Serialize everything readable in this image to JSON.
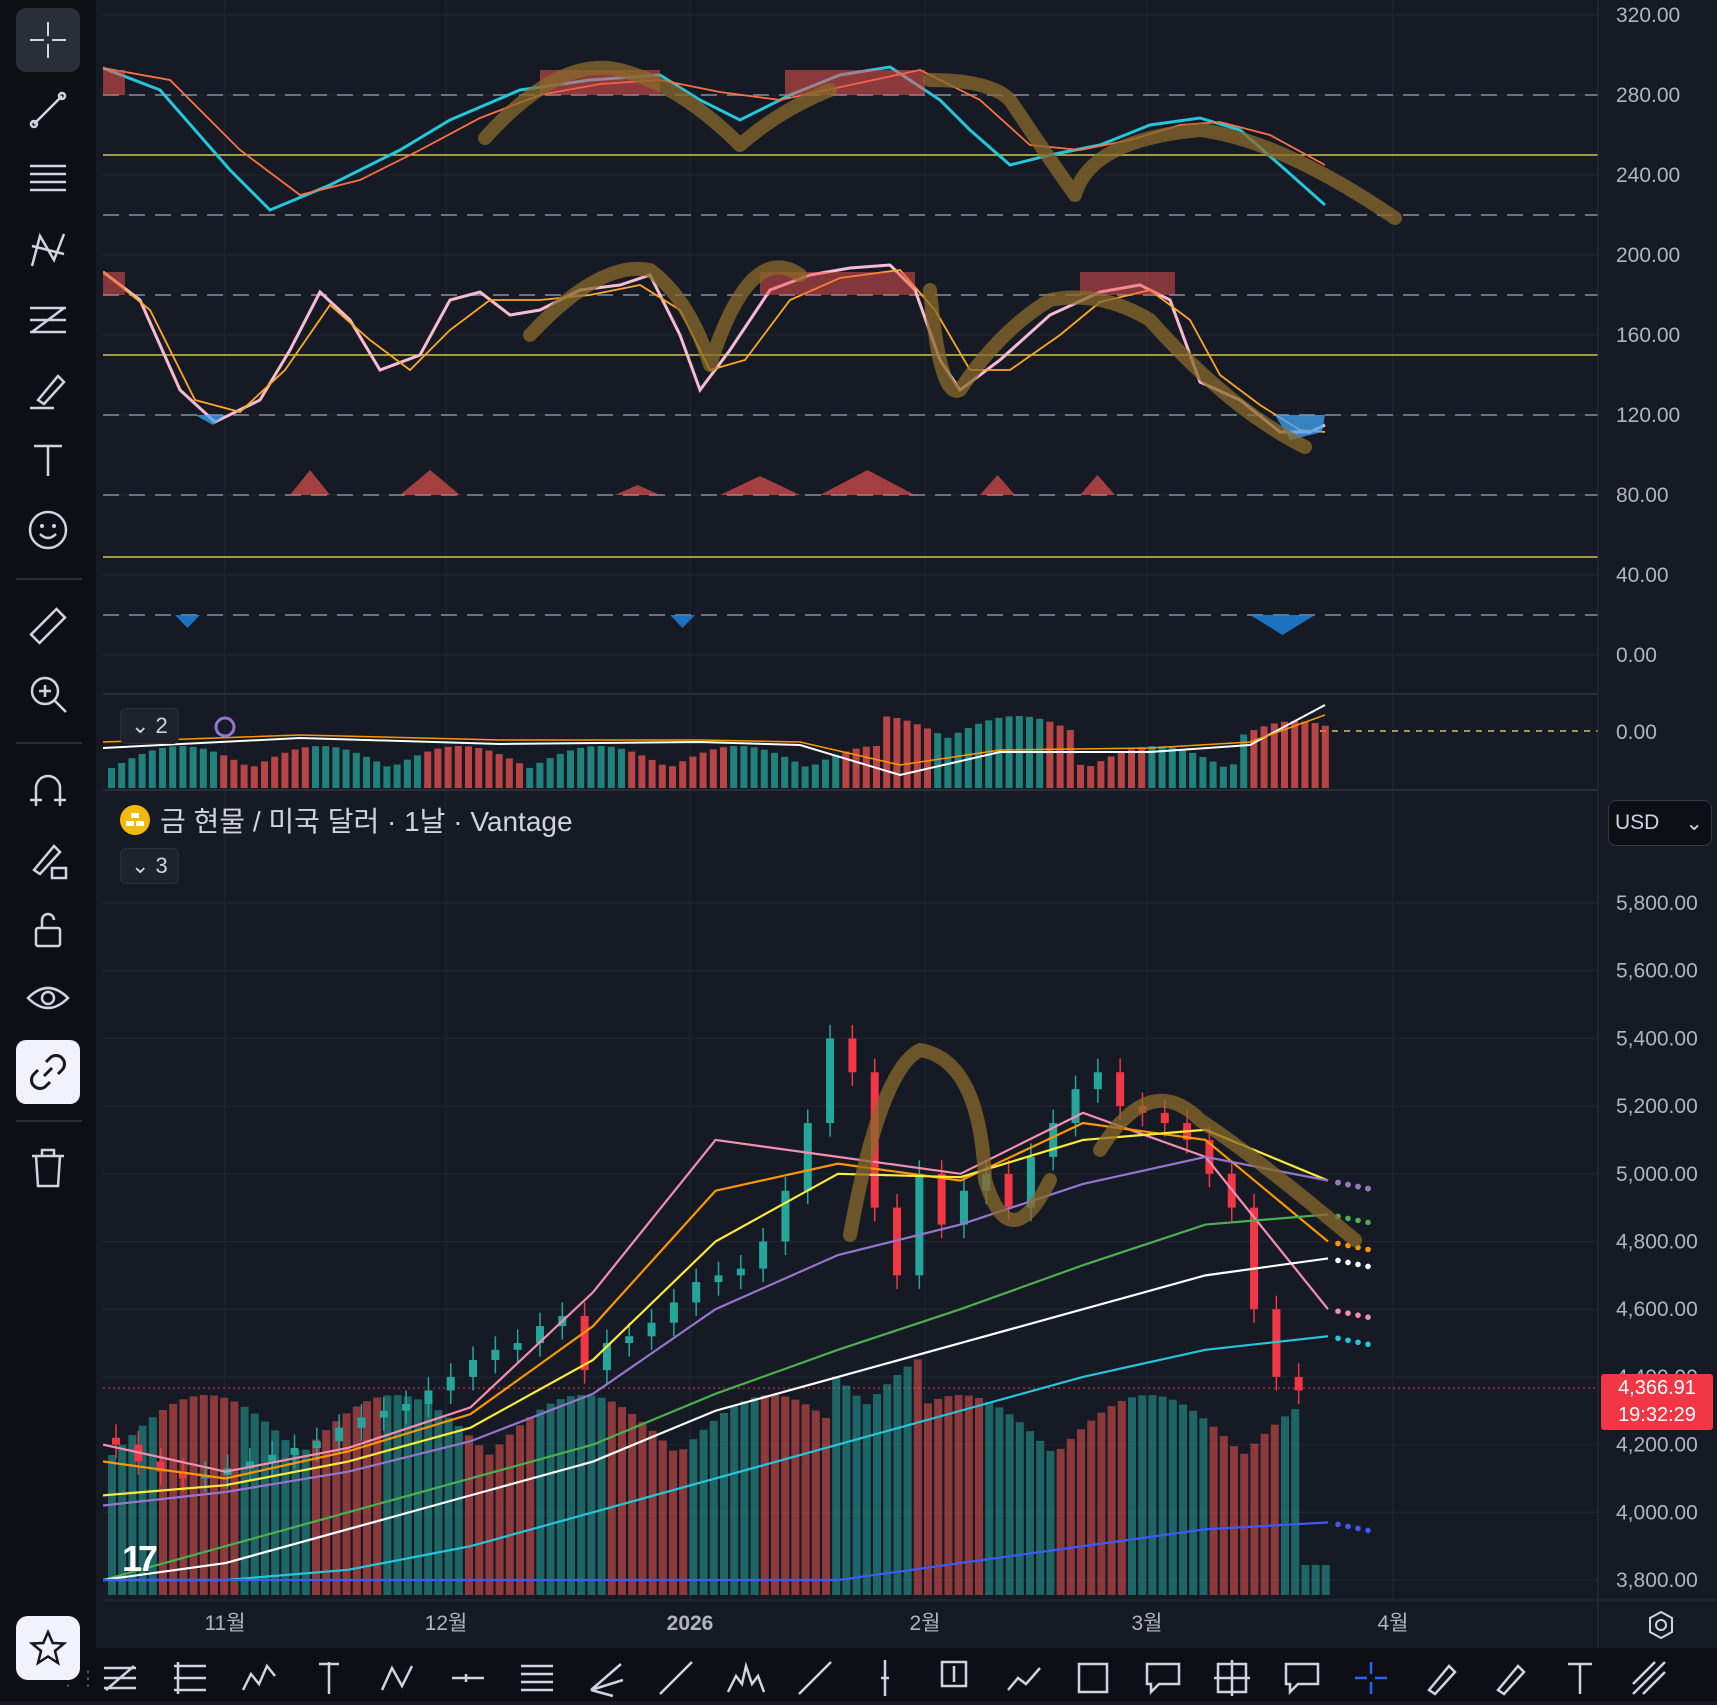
{
  "left_toolbar": {
    "tools": [
      {
        "name": "crosshair-icon",
        "active": true
      },
      {
        "name": "trend-line-icon"
      },
      {
        "name": "horizontal-lines-icon"
      },
      {
        "name": "pattern-icon"
      },
      {
        "name": "fib-retracement-icon"
      },
      {
        "name": "brush-icon"
      },
      {
        "name": "text-icon"
      },
      {
        "name": "emoji-icon"
      },
      {
        "name": "ruler-icon"
      },
      {
        "name": "zoom-in-icon"
      },
      {
        "name": "magnet-icon"
      },
      {
        "name": "lock-drawing-icon"
      },
      {
        "name": "unlock-icon"
      },
      {
        "name": "eye-icon"
      },
      {
        "name": "link-icon",
        "active": true
      },
      {
        "name": "trash-icon"
      }
    ]
  },
  "chart": {
    "symbol_title": "금 현물 / 미국 달러 · 1날 · Vantage",
    "currency": "USD",
    "oscillator_panel_collapse": "2",
    "main_panel_collapse": "3",
    "last_price": "4,366.91",
    "countdown": "19:32:29",
    "colors": {
      "up": "#26a69a",
      "down": "#ef5350",
      "background": "#161a25",
      "grid": "#262a35",
      "price_tag": "#f23645"
    },
    "oscillator_axis": [
      "320.00",
      "280.00",
      "240.00",
      "200.00",
      "160.00",
      "120.00",
      "80.00",
      "40.00",
      "0.00"
    ],
    "macd_axis": [
      "0.00"
    ],
    "price_axis": [
      "5,800.00",
      "5,600.00",
      "5,400.00",
      "5,200.00",
      "5,000.00",
      "4,800.00",
      "4,600.00",
      "4,400.00",
      "4,200.00",
      "4,000.00",
      "3,800.00"
    ],
    "time_axis": [
      "11월",
      "12월",
      "2026",
      "2월",
      "3월",
      "4월"
    ],
    "logo": "17"
  },
  "chart_data": {
    "type": "line",
    "price_ylim": [
      3800,
      5800
    ],
    "moving_averages": [
      {
        "color": "#f48fb1",
        "values": [
          4200,
          4120,
          4190,
          4310,
          4650,
          5100,
          5050,
          5000,
          5180,
          5050,
          4600
        ]
      },
      {
        "color": "#ff9800",
        "values": [
          4150,
          4100,
          4180,
          4290,
          4550,
          4950,
          5030,
          4980,
          5150,
          5100,
          4800
        ]
      },
      {
        "color": "#ffeb3b",
        "values": [
          4050,
          4080,
          4150,
          4250,
          4450,
          4800,
          5000,
          4990,
          5100,
          5130,
          4980
        ]
      },
      {
        "color": "#9575cd",
        "values": [
          4020,
          4060,
          4120,
          4210,
          4350,
          4600,
          4760,
          4850,
          4970,
          5050,
          4980
        ]
      },
      {
        "color": "#4caf50",
        "values": [
          3800,
          3900,
          4000,
          4100,
          4200,
          4350,
          4480,
          4600,
          4730,
          4850,
          4880
        ]
      },
      {
        "color": "#ffffff",
        "values": [
          3800,
          3850,
          3950,
          4050,
          4150,
          4300,
          4400,
          4500,
          4600,
          4700,
          4750
        ]
      },
      {
        "color": "#26c6da",
        "values": [
          3800,
          3800,
          3830,
          3900,
          4000,
          4100,
          4200,
          4300,
          4400,
          4480,
          4520
        ]
      },
      {
        "color": "#3d5afe",
        "values": [
          3800,
          3800,
          3800,
          3800,
          3800,
          3800,
          3800,
          3850,
          3900,
          3950,
          3970
        ]
      }
    ]
  }
}
